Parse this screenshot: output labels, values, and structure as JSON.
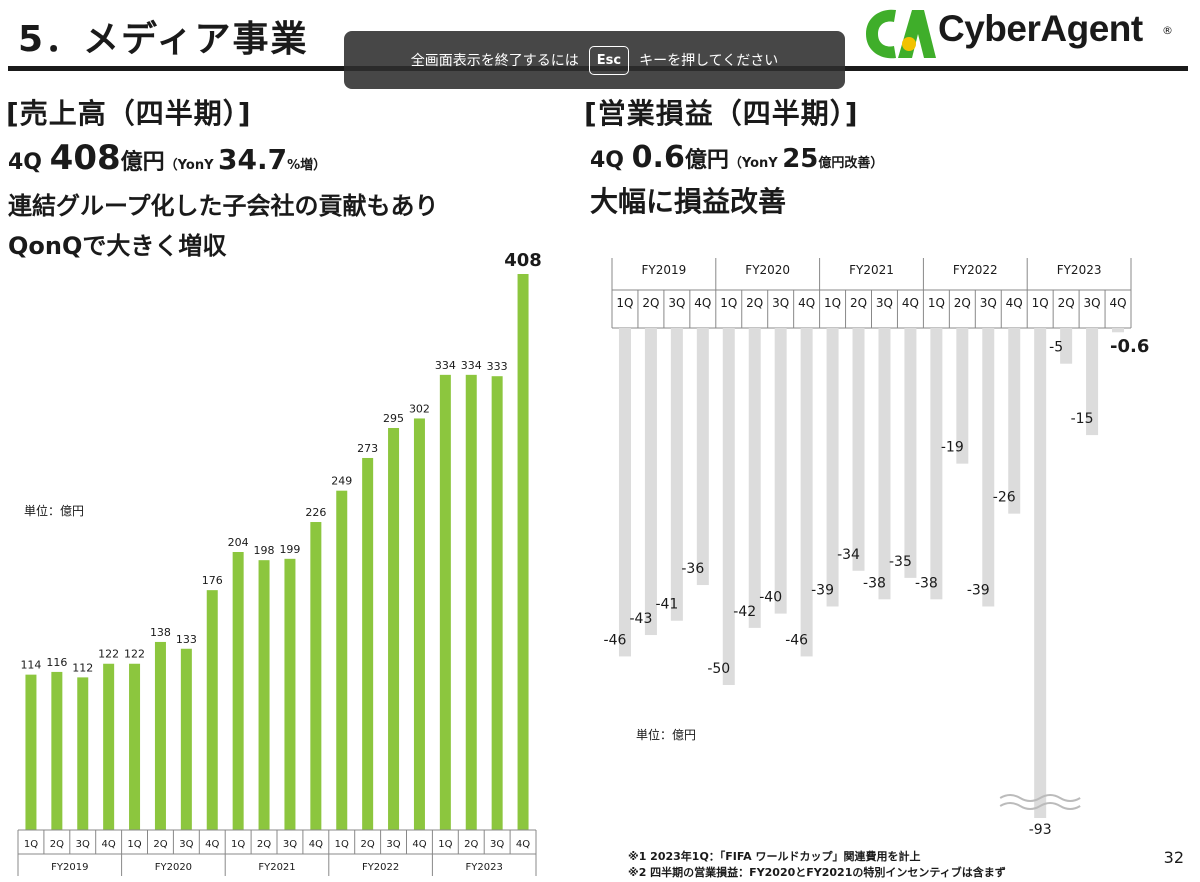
{
  "header": {
    "title": "5．メディア事業",
    "logo_text": "CyberAgent",
    "logo_registered": "®",
    "logo_colors": {
      "green": "#3fae2a",
      "yellow": "#f2c200"
    }
  },
  "fullscreen_banner": {
    "before": "全画面表示を終了するには",
    "key": "Esc",
    "after": "キーを押してください"
  },
  "left": {
    "title": "[売上高（四半期）]",
    "line1_prefix": "4Q ",
    "line1_value": "408",
    "line1_unit": "億円",
    "line1_paren_open": "（YonY ",
    "line1_pct": "34.7",
    "line1_pct_suffix": "%増）",
    "line2": "連結グループ化した子会社の貢献もあり",
    "line3": "QonQで大きく増収",
    "unit_label": "単位：億円"
  },
  "right": {
    "title": "[営業損益（四半期）]",
    "line1_prefix": "4Q ",
    "line1_value": "0.6",
    "line1_unit": "億円",
    "line1_paren_open": "（YonY ",
    "line1_num": "25",
    "line1_suffix": "億円改善）",
    "line2": "大幅に損益改善",
    "unit_label": "単位：億円"
  },
  "notes": [
    "※1 2023年1Q：「FIFA ワールドカップ」関連費用を計上",
    "※2 四半期の営業損益：FY2020とFY2021の特別インセンティブは含まず"
  ],
  "page_number": "32",
  "chart_data": [
    {
      "type": "bar",
      "name": "revenue",
      "color": "#8cc63e",
      "categories": [
        "1Q",
        "2Q",
        "3Q",
        "4Q",
        "1Q",
        "2Q",
        "3Q",
        "4Q",
        "1Q",
        "2Q",
        "3Q",
        "4Q",
        "1Q",
        "2Q",
        "3Q",
        "4Q",
        "1Q",
        "2Q",
        "3Q",
        "4Q"
      ],
      "groups": [
        "FY2019",
        "FY2020",
        "FY2021",
        "FY2022",
        "FY2023"
      ],
      "values": [
        114,
        116,
        112,
        122,
        122,
        138,
        133,
        176,
        204,
        198,
        199,
        226,
        249,
        273,
        295,
        302,
        334,
        334,
        333,
        408
      ],
      "labels": [
        "114",
        "116",
        "112",
        "122",
        "122",
        "138",
        "133",
        "176",
        "204",
        "198",
        "199",
        "226",
        "249",
        "273",
        "295",
        "302",
        "334",
        "334",
        "333",
        "408"
      ],
      "ylim": [
        0,
        408
      ]
    },
    {
      "type": "bar",
      "name": "operating_loss",
      "color": "#dcdcdc",
      "categories": [
        "1Q",
        "2Q",
        "3Q",
        "4Q",
        "1Q",
        "2Q",
        "3Q",
        "4Q",
        "1Q",
        "2Q",
        "3Q",
        "4Q",
        "1Q",
        "2Q",
        "3Q",
        "4Q",
        "1Q",
        "2Q",
        "3Q",
        "4Q"
      ],
      "groups": [
        "FY2019",
        "FY2020",
        "FY2021",
        "FY2022",
        "FY2023"
      ],
      "values": [
        -46,
        -43,
        -41,
        -36,
        -50,
        -42,
        -40,
        -46,
        -39,
        -34,
        -38,
        -35,
        -38,
        -19,
        -39,
        -26,
        -93,
        -5,
        -15,
        -0.6
      ],
      "labels": [
        "-46",
        "-43",
        "-41",
        "-36",
        "-50",
        "-42",
        "-40",
        "-46",
        "-39",
        "-34",
        "-38",
        "-35",
        "-38",
        "-19",
        "-39",
        "-26",
        "-93",
        "-5",
        "-15",
        "-0.6"
      ],
      "ylim": [
        -93,
        0
      ],
      "axis_break_on": "FY2023 1Q"
    }
  ]
}
